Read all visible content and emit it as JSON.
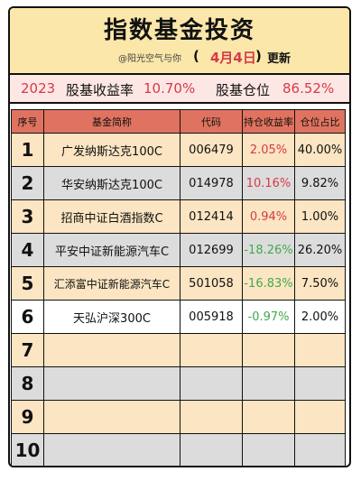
{
  "header": {
    "title": "指数基金投资",
    "handle": "@阳光空气与你",
    "paren_open": "(",
    "date": "4月4日",
    "paren_close": ")",
    "update_label": "更新"
  },
  "summary": {
    "year": "2023",
    "return_label": "股基收益率",
    "return_value": "10.70%",
    "position_label": "股基仓位",
    "position_value": "86.52%"
  },
  "table": {
    "headers": [
      "序号",
      "基金简称",
      "代码",
      "持仓收益率",
      "仓位占比"
    ],
    "rows": [
      {
        "no": "1",
        "name": "广发纳斯达克100C",
        "code": "006479",
        "ret": "2.05%",
        "pos": "40.00%"
      },
      {
        "no": "2",
        "name": "华安纳斯达克100C",
        "code": "014978",
        "ret": "10.16%",
        "pos": "9.82%"
      },
      {
        "no": "3",
        "name": "招商中证白酒指数C",
        "code": "012414",
        "ret": "0.94%",
        "pos": "1.00%"
      },
      {
        "no": "4",
        "name": "平安中证新能源汽车C",
        "code": "012699",
        "ret": "-18.26%",
        "pos": "26.20%"
      },
      {
        "no": "5",
        "name": "汇添富中证新能源汽车C",
        "code": "501058",
        "ret": "-16.83%",
        "pos": "7.50%"
      },
      {
        "no": "6",
        "name": "天弘沪深300C",
        "code": "005918",
        "ret": "-0.97%",
        "pos": "2.00%"
      },
      {
        "no": "7",
        "name": "",
        "code": "",
        "ret": "",
        "pos": ""
      },
      {
        "no": "8",
        "name": "",
        "code": "",
        "ret": "",
        "pos": ""
      },
      {
        "no": "9",
        "name": "",
        "code": "",
        "ret": "",
        "pos": ""
      },
      {
        "no": "10",
        "name": "",
        "code": "",
        "ret": "",
        "pos": ""
      }
    ]
  },
  "colors": {
    "header_bg": "#fbe7a9",
    "summary_bg": "#fde7e4",
    "table_header_bg": "#e0735f",
    "row_cream": "#fbe5c2",
    "row_gray": "#dcdcdc",
    "positive": "#d63a4a",
    "negative": "#44a84e"
  }
}
